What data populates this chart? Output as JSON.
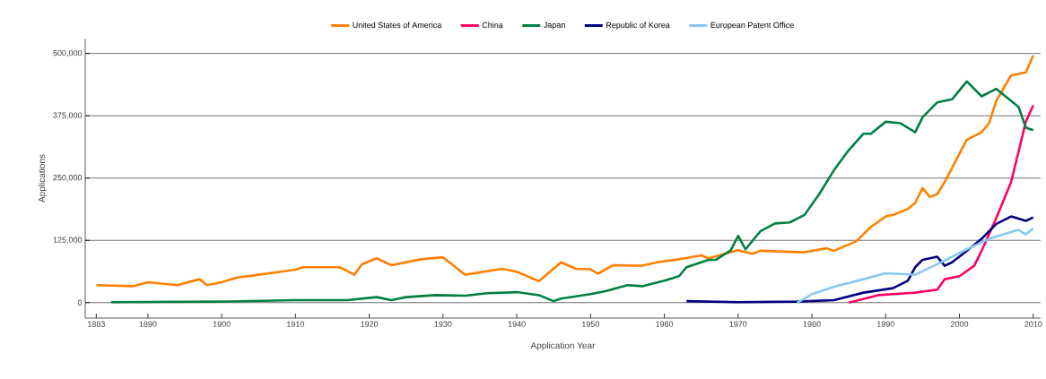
{
  "chart_data": {
    "type": "line",
    "xlabel": "Application Year",
    "ylabel": "Applications",
    "xlim": [
      1881.5,
      2011
    ],
    "ylim": [
      -31000,
      530000
    ],
    "xticks": [
      1883,
      1890,
      1900,
      1910,
      1920,
      1930,
      1940,
      1950,
      1960,
      1970,
      1980,
      1990,
      2000,
      2010
    ],
    "yticks": [
      0,
      {
        "value": 125000,
        "label": "125,000"
      },
      {
        "value": 250000,
        "label": "250,000"
      },
      {
        "value": 375000,
        "label": "375,000"
      },
      {
        "value": 500000,
        "label": "500,000"
      }
    ],
    "grid": "y",
    "legend": "top",
    "marker": "none",
    "line_style": "solid",
    "series": [
      {
        "name": "United States of America",
        "color": "#ff8000",
        "x": [
          1883,
          1888,
          1890,
          1894,
          1897,
          1898,
          1900,
          1902,
          1905,
          1908,
          1910,
          1911,
          1916,
          1918,
          1919,
          1921,
          1923,
          1927,
          1930,
          1933,
          1938,
          1940,
          1943,
          1946,
          1948,
          1950,
          1951,
          1953,
          1957,
          1959,
          1962,
          1965,
          1966,
          1970,
          1972,
          1973,
          1979,
          1982,
          1983,
          1986,
          1988,
          1990,
          1991,
          1993,
          1994,
          1995,
          1996,
          1997,
          1998,
          2001,
          2003,
          2004,
          2005,
          2007,
          2009,
          2010
        ],
        "values": [
          35000,
          33000,
          41000,
          35000,
          47000,
          35000,
          41000,
          50000,
          56000,
          62000,
          66000,
          71000,
          71000,
          56000,
          77000,
          89000,
          75000,
          87000,
          91000,
          56000,
          68000,
          62000,
          43000,
          81000,
          68000,
          67000,
          58000,
          75000,
          74000,
          81000,
          87000,
          95000,
          89000,
          105000,
          98000,
          104000,
          101000,
          109000,
          104000,
          123000,
          152000,
          173000,
          176000,
          188000,
          200000,
          230000,
          212000,
          218000,
          242000,
          327000,
          342000,
          360000,
          405000,
          456000,
          462000,
          496000
        ]
      },
      {
        "name": "China",
        "color": "#ff0066",
        "x": [
          1985,
          1989,
          1994,
          1997,
          1998,
          2000,
          2002,
          2003,
          2005,
          2007,
          2008,
          2009,
          2010
        ],
        "values": [
          0,
          15000,
          20000,
          26000,
          47000,
          53000,
          74000,
          104000,
          170000,
          242000,
          302000,
          363000,
          396000
        ]
      },
      {
        "name": "Japan",
        "color": "#008040",
        "x": [
          1885,
          1900,
          1910,
          1917,
          1921,
          1923,
          1925,
          1929,
          1933,
          1936,
          1940,
          1943,
          1945,
          1946,
          1950,
          1952,
          1955,
          1957,
          1960,
          1962,
          1963,
          1966,
          1967,
          1969,
          1970,
          1971,
          1973,
          1975,
          1977,
          1979,
          1981,
          1983,
          1985,
          1987,
          1988,
          1990,
          1992,
          1994,
          1995,
          1997,
          1999,
          2001,
          2003,
          2005,
          2008,
          2009,
          2010
        ],
        "values": [
          1000,
          2000,
          5000,
          5000,
          11000,
          5000,
          11000,
          15000,
          14000,
          19000,
          21000,
          15000,
          3000,
          8000,
          17000,
          23000,
          35000,
          33000,
          44000,
          53000,
          71000,
          86000,
          86000,
          105000,
          134000,
          107000,
          143000,
          159000,
          161000,
          176000,
          218000,
          266000,
          306000,
          339000,
          339000,
          363000,
          360000,
          342000,
          372000,
          402000,
          408000,
          444000,
          414000,
          429000,
          393000,
          351000,
          346000
        ]
      },
      {
        "name": "Republic of Korea",
        "color": "#000080",
        "x": [
          1963,
          1970,
          1978,
          1983,
          1987,
          1991,
          1993,
          1994,
          1995,
          1997,
          1998,
          1999,
          2001,
          2003,
          2005,
          2007,
          2009,
          2010
        ],
        "values": [
          3000,
          1000,
          2000,
          5000,
          20000,
          29000,
          44000,
          71000,
          86000,
          92000,
          74000,
          81000,
          104000,
          128000,
          158000,
          173000,
          164000,
          171000
        ]
      },
      {
        "name": "European Patent Office",
        "color": "#87c8f0",
        "x": [
          1978,
          1980,
          1983,
          1987,
          1990,
          1994,
          1997,
          2001,
          2004,
          2008,
          2009,
          2010
        ],
        "values": [
          0,
          17000,
          32000,
          47000,
          59000,
          56000,
          77000,
          107000,
          128000,
          146000,
          137000,
          149000
        ]
      }
    ]
  }
}
